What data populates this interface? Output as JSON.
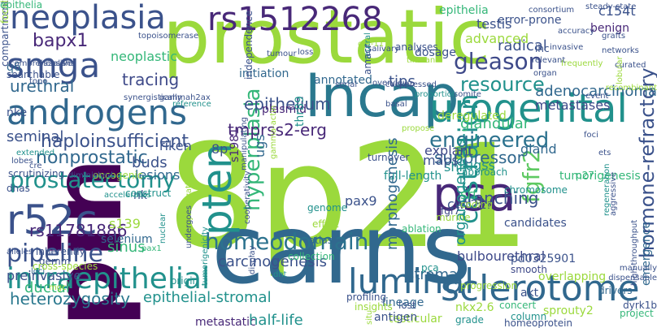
{
  "palette": {
    "dark_purple": "#440154",
    "indigo": "#3b528b",
    "blue": "#31688e",
    "teal": "#21918c",
    "green": "#35b779",
    "lime": "#9bd93c",
    "yellow": "#dde318"
  },
  "words": [
    {
      "text": "pin",
      "color": "#440154",
      "rotated": true
    },
    {
      "text": "8p21",
      "color": "#9bd93c",
      "rotated": false
    },
    {
      "text": "prostatic",
      "color": "#9bd93c",
      "rotated": false
    },
    {
      "text": "carns",
      "color": "#31688e",
      "rotated": false
    },
    {
      "text": "lncap",
      "color": "#2a788e",
      "rotated": false
    },
    {
      "text": "neoplasia",
      "color": "#3b528b",
      "rotated": false
    },
    {
      "text": "rs1512268",
      "color": "#482878",
      "rotated": false
    },
    {
      "text": "androgens",
      "color": "#31688e",
      "rotated": false
    },
    {
      "text": "urogenital",
      "color": "#21918c",
      "rotated": false
    },
    {
      "text": "intraepithelial",
      "color": "#21918c",
      "rotated": false
    },
    {
      "text": "sclerotome",
      "color": "#31688e",
      "rotated": false
    },
    {
      "text": "luminal",
      "color": "#31688e",
      "rotated": false
    },
    {
      "text": "psa",
      "color": "#482878",
      "rotated": false
    },
    {
      "text": "pten",
      "color": "#21918c",
      "rotated": true
    },
    {
      "text": "smga",
      "color": "#3b528b",
      "rotated": false
    },
    {
      "text": "r52c",
      "color": "#3b528b",
      "rotated": false
    },
    {
      "text": "prostatectomy",
      "color": "#21918c",
      "rotated": false
    },
    {
      "text": "homeodomain",
      "color": "#2c728e",
      "rotated": false
    },
    {
      "text": "pipeline",
      "color": "#3b528b",
      "rotated": false
    },
    {
      "text": "castration",
      "color": "#21918c",
      "rotated": true
    },
    {
      "text": "hyperplasia",
      "color": "#35b779",
      "rotated": true
    },
    {
      "text": "gleason",
      "color": "#3e4989",
      "rotated": false
    },
    {
      "text": "engineered",
      "color": "#2c728e",
      "rotated": false
    },
    {
      "text": "resource",
      "color": "#21918c",
      "rotated": false
    },
    {
      "text": "fgfr2",
      "color": "#5ec962",
      "rotated": true
    },
    {
      "text": "hormone-refractory",
      "color": "#3b528b",
      "rotated": true
    },
    {
      "text": "bapx1",
      "color": "#482878",
      "rotated": false
    },
    {
      "text": "urethral",
      "color": "#31688e",
      "rotated": false
    },
    {
      "text": "tracing",
      "color": "#3e4989",
      "rotated": false
    },
    {
      "text": "epithelium",
      "color": "#3b528b",
      "rotated": false
    },
    {
      "text": "haploinsufficient",
      "color": "#3b528b",
      "rotated": false
    },
    {
      "text": "suppressor",
      "color": "#31688e",
      "rotated": false
    },
    {
      "text": "nonprostatic",
      "color": "#31688e",
      "rotated": false
    },
    {
      "text": "rs11781886",
      "color": "#482878",
      "rotated": false
    },
    {
      "text": "carcinogenesis",
      "color": "#3b528b",
      "rotated": false
    },
    {
      "text": "bulbourethral",
      "color": "#3e4989",
      "rotated": false
    },
    {
      "text": "heterozygosity",
      "color": "#2a788e",
      "rotated": false
    },
    {
      "text": "epithelial-stromal",
      "color": "#21918c",
      "rotated": false
    },
    {
      "text": "preinvasive",
      "color": "#3b528b",
      "rotated": false
    },
    {
      "text": "ductal",
      "color": "#35b779",
      "rotated": false
    },
    {
      "text": "seminal",
      "color": "#3b528b",
      "rotated": false
    },
    {
      "text": "branching",
      "color": "#3b528b",
      "rotated": false
    },
    {
      "text": "tmprss2-erg",
      "color": "#482878",
      "rotated": false
    },
    {
      "text": "organogenesis",
      "color": "#21918c",
      "rotated": true
    },
    {
      "text": "morphogenesis",
      "color": "#31688e",
      "rotated": true
    },
    {
      "text": "epithelia",
      "color": "#35b779",
      "rotated": false
    },
    {
      "text": "radical",
      "color": "#3b528b",
      "rotated": false
    },
    {
      "text": "c154t",
      "color": "#3b528b",
      "rotated": false
    },
    {
      "text": "benign",
      "color": "#482878",
      "rotated": false
    },
    {
      "text": "adenocarcinoma",
      "color": "#31688e",
      "rotated": false
    },
    {
      "text": "testis",
      "color": "#3b528b",
      "rotated": false
    },
    {
      "text": "advanced",
      "color": "#9bd93c",
      "rotated": false
    },
    {
      "text": "metastases",
      "color": "#3e4989",
      "rotated": false
    },
    {
      "text": "glandular",
      "color": "#35b779",
      "rotated": false
    },
    {
      "text": "gland",
      "color": "#31688e",
      "rotated": false
    },
    {
      "text": "deregulated",
      "color": "#9bd93c",
      "rotated": false
    },
    {
      "text": "plasmid",
      "color": "#482878",
      "rotated": false
    },
    {
      "text": "annotated",
      "color": "#31688e",
      "rotated": false
    },
    {
      "text": "tips",
      "color": "#3b528b",
      "rotated": false
    },
    {
      "text": "initiation",
      "color": "#31688e",
      "rotated": false
    },
    {
      "text": "neoplastic",
      "color": "#35b779",
      "rotated": false
    },
    {
      "text": "buds",
      "color": "#3b528b",
      "rotated": false
    },
    {
      "text": "lesions",
      "color": "#31688e",
      "rotated": false
    },
    {
      "text": "riken",
      "color": "#3b528b",
      "rotated": false
    },
    {
      "text": "8p",
      "color": "#3b528b",
      "rotated": false
    },
    {
      "text": "nk",
      "color": "#3b528b",
      "rotated": false
    },
    {
      "text": "ugs",
      "color": "#31688e",
      "rotated": true
    },
    {
      "text": "s1981",
      "color": "#482878",
      "rotated": true
    },
    {
      "text": "thr89",
      "color": "#21918c",
      "rotated": true
    },
    {
      "text": "ugss",
      "color": "#21918c",
      "rotated": false
    },
    {
      "text": "shh",
      "color": "#21918c",
      "rotated": false
    },
    {
      "text": "srf",
      "color": "#35b779",
      "rotated": false
    },
    {
      "text": "explant",
      "color": "#3e4989",
      "rotated": false
    },
    {
      "text": "maps",
      "color": "#3b528b",
      "rotated": false
    },
    {
      "text": "full-length",
      "color": "#21918c",
      "rotated": false
    },
    {
      "text": "p27",
      "color": "#35b779",
      "rotated": false
    },
    {
      "text": "pax9",
      "color": "#3b528b",
      "rotated": false
    },
    {
      "text": "cwr22r",
      "color": "#3b528b",
      "rotated": false
    },
    {
      "text": "tumorigenesis",
      "color": "#35b779",
      "rotated": false
    },
    {
      "text": "candidates",
      "color": "#3b528b",
      "rotated": false
    },
    {
      "text": "stroma",
      "color": "#31688e",
      "rotated": false
    },
    {
      "text": "sinus",
      "color": "#35b779",
      "rotated": false
    },
    {
      "text": "s139",
      "color": "#9bd93c",
      "rotated": false
    },
    {
      "text": "selenium",
      "color": "#31688e",
      "rotated": false
    },
    {
      "text": "q6",
      "color": "#31688e",
      "rotated": false
    },
    {
      "text": "nke",
      "color": "#3b528b",
      "rotated": false
    },
    {
      "text": "metastatic",
      "color": "#482878",
      "rotated": false
    },
    {
      "text": "half-life",
      "color": "#21918c",
      "rotated": false
    },
    {
      "text": "testicular",
      "color": "#9bd93c",
      "rotated": false
    },
    {
      "text": "lineage",
      "color": "#31688e",
      "rotated": false
    },
    {
      "text": "antigen",
      "color": "#3b528b",
      "rotated": false
    },
    {
      "text": "pd0325901",
      "color": "#3b528b",
      "rotated": false
    },
    {
      "text": "nkx2.6",
      "color": "#9bd93c",
      "rotated": false
    },
    {
      "text": "akt",
      "color": "#3b528b",
      "rotated": false
    },
    {
      "text": "concert",
      "color": "#35b779",
      "rotated": false
    },
    {
      "text": "column",
      "color": "#21918c",
      "rotated": false
    },
    {
      "text": "sprouty2",
      "color": "#9bd93c",
      "rotated": false
    },
    {
      "text": "grade",
      "color": "#21918c",
      "rotated": false
    },
    {
      "text": "homeoprotein",
      "color": "#3b528b",
      "rotated": false
    },
    {
      "text": "drivers",
      "color": "#31688e",
      "rotated": false
    },
    {
      "text": "dyrk1b",
      "color": "#3b528b",
      "rotated": false
    },
    {
      "text": "emergence",
      "color": "#31688e",
      "rotated": true
    },
    {
      "text": "overlapping",
      "color": "#9bd93c",
      "rotated": false
    },
    {
      "text": "pca",
      "color": "#21918c",
      "rotated": false
    },
    {
      "text": "smooth",
      "color": "#3e4989",
      "rotated": false
    },
    {
      "text": "project",
      "color": "#35b779",
      "rotated": false
    },
    {
      "text": "ablation",
      "color": "#35b779",
      "rotated": false
    },
    {
      "text": "chromosome",
      "color": "#21918c",
      "rotated": false
    },
    {
      "text": "coding",
      "color": "#9bd93c",
      "rotated": false
    },
    {
      "text": "murine",
      "color": "#9bd93c",
      "rotated": false
    },
    {
      "text": "fgf7",
      "color": "#3e4989",
      "rotated": false
    },
    {
      "text": "approach",
      "color": "#21918c",
      "rotated": false
    },
    {
      "text": "turnover",
      "color": "#3b528b",
      "rotated": false
    },
    {
      "text": "genome",
      "color": "#21918c",
      "rotated": false
    },
    {
      "text": "effort",
      "color": "#9bd93c",
      "rotated": false
    },
    {
      "text": "atlas",
      "color": "#31688e",
      "rotated": false
    },
    {
      "text": "progression",
      "color": "#9bd93c",
      "rotated": false
    },
    {
      "text": "collection",
      "color": "#35b779",
      "rotated": false
    },
    {
      "text": "profiling",
      "color": "#3b528b",
      "rotated": false
    },
    {
      "text": "lost",
      "color": "#3b528b",
      "rotated": false
    },
    {
      "text": "insights",
      "color": "#9bd93c",
      "rotated": false
    },
    {
      "text": "origin",
      "color": "#21918c",
      "rotated": false
    },
    {
      "text": "pax1",
      "color": "#35b779",
      "rotated": false
    },
    {
      "text": "gemm",
      "color": "#3b528b",
      "rotated": false
    },
    {
      "text": "inherently",
      "color": "#3b528b",
      "rotated": false
    },
    {
      "text": "loci",
      "color": "#31688e",
      "rotated": false
    },
    {
      "text": "alleles",
      "color": "#3b528b",
      "rotated": false
    },
    {
      "text": "cross-species",
      "color": "#9bd93c",
      "rotated": false
    },
    {
      "text": "searchable",
      "color": "#3b528b",
      "rotated": false
    },
    {
      "text": "scrutinizing",
      "color": "#3b528b",
      "rotated": false
    },
    {
      "text": "oncogenic",
      "color": "#9bd93c",
      "rotated": false
    },
    {
      "text": "dnas",
      "color": "#3b528b",
      "rotated": false
    },
    {
      "text": "diminished",
      "color": "#3b528b",
      "rotated": false
    },
    {
      "text": "construct",
      "color": "#21918c",
      "rotated": false
    },
    {
      "text": "accelerates",
      "color": "#21918c",
      "rotated": false
    },
    {
      "text": "cre",
      "color": "#3b528b",
      "rotated": false
    },
    {
      "text": "lobes",
      "color": "#3b528b",
      "rotated": false
    },
    {
      "text": "extended",
      "color": "#21918c",
      "rotated": false
    },
    {
      "text": "comprehensive",
      "color": "#3b528b",
      "rotated": false
    },
    {
      "text": "topo",
      "color": "#3b528b",
      "rotated": false
    },
    {
      "text": "topoisomerase",
      "color": "#3b528b",
      "rotated": false
    },
    {
      "text": "synergistically",
      "color": "#3b528b",
      "rotated": false
    },
    {
      "text": "frs2alpha",
      "color": "#3b528b",
      "rotated": false
    },
    {
      "text": "gammah2ax",
      "color": "#3b528b",
      "rotated": false
    },
    {
      "text": "reference",
      "color": "#21918c",
      "rotated": false
    },
    {
      "text": "tumour",
      "color": "#3b528b",
      "rotated": false
    },
    {
      "text": "loss",
      "color": "#3b528b",
      "rotated": false
    },
    {
      "text": "salivary",
      "color": "#3b528b",
      "rotated": false
    },
    {
      "text": "analyses",
      "color": "#3b528b",
      "rotated": false
    },
    {
      "text": "dosage",
      "color": "#3b528b",
      "rotated": false
    },
    {
      "text": "tinman",
      "color": "#9bd93c",
      "rotated": false
    },
    {
      "text": "overview",
      "color": "#3b528b",
      "rotated": false
    },
    {
      "text": "serial",
      "color": "#3b528b",
      "rotated": false
    },
    {
      "text": "coexpressed",
      "color": "#3b528b",
      "rotated": false
    },
    {
      "text": "proportion",
      "color": "#21918c",
      "rotated": false
    },
    {
      "text": "somite",
      "color": "#3b528b",
      "rotated": false
    },
    {
      "text": "basal",
      "color": "#3b528b",
      "rotated": false
    },
    {
      "text": "propose",
      "color": "#9bd93c",
      "rotated": false
    },
    {
      "text": "frequently",
      "color": "#9bd93c",
      "rotated": false
    },
    {
      "text": "ihc",
      "color": "#3b528b",
      "rotated": false
    },
    {
      "text": "relevant",
      "color": "#3b528b",
      "rotated": false
    },
    {
      "text": "organ",
      "color": "#3b528b",
      "rotated": false
    },
    {
      "text": "invasive",
      "color": "#3b528b",
      "rotated": false
    },
    {
      "text": "accuracy",
      "color": "#3b528b",
      "rotated": false
    },
    {
      "text": "consortium",
      "color": "#3b528b",
      "rotated": false
    },
    {
      "text": "steady-state",
      "color": "#3b528b",
      "rotated": false
    },
    {
      "text": "grafts",
      "color": "#3b528b",
      "rotated": false
    },
    {
      "text": "networks",
      "color": "#3b528b",
      "rotated": false
    },
    {
      "text": "curated",
      "color": "#3b528b",
      "rotated": false
    },
    {
      "text": "event",
      "color": "#3b528b",
      "rotated": false
    },
    {
      "text": "foci",
      "color": "#3b528b",
      "rotated": false
    },
    {
      "text": "ets",
      "color": "#3b528b",
      "rotated": false
    },
    {
      "text": "recombinant",
      "color": "#9bd93c",
      "rotated": false
    },
    {
      "text": "lobular",
      "color": "#9bd93c",
      "rotated": true
    },
    {
      "text": "aggressive",
      "color": "#3b528b",
      "rotated": true
    },
    {
      "text": "high-throughput",
      "color": "#3b528b",
      "rotated": true
    },
    {
      "text": "regeneration",
      "color": "#21918c",
      "rotated": true
    },
    {
      "text": "gamma-actin",
      "color": "#9bd93c",
      "rotated": true
    },
    {
      "text": "independence",
      "color": "#3b528b",
      "rotated": true
    },
    {
      "text": "manipulating",
      "color": "#3b528b",
      "rotated": true
    },
    {
      "text": "cooperativity",
      "color": "#3b528b",
      "rotated": true
    },
    {
      "text": "tumorigenicity",
      "color": "#21918c",
      "rotated": true
    },
    {
      "text": "hybridization",
      "color": "#9bd93c",
      "rotated": true
    },
    {
      "text": "undergoes",
      "color": "#3b528b",
      "rotated": true
    },
    {
      "text": "display",
      "color": "#3b528b",
      "rotated": true
    },
    {
      "text": "situ",
      "color": "#9bd93c",
      "rotated": true
    },
    {
      "text": "dht",
      "color": "#21918c",
      "rotated": false
    },
    {
      "text": "cpt-11",
      "color": "#9bd93c",
      "rotated": false
    },
    {
      "text": "neutral",
      "color": "#21918c",
      "rotated": true
    },
    {
      "text": "amacr",
      "color": "#3b528b",
      "rotated": true
    },
    {
      "text": "nuclear",
      "color": "#21918c",
      "rotated": true
    },
    {
      "text": "mgc",
      "color": "#9bd93c",
      "rotated": false
    },
    {
      "text": "manually",
      "color": "#3b528b",
      "rotated": false
    },
    {
      "text": "dispensable",
      "color": "#3b528b",
      "rotated": false
    },
    {
      "text": "error-prone",
      "color": "#3b528b",
      "rotated": false
    },
    {
      "text": "compartment",
      "color": "#3b528b",
      "rotated": true
    },
    {
      "text": "focal",
      "color": "#9bd93c",
      "rotated": true
    },
    {
      "text": "epithelia",
      "color": "#35b779",
      "rotated": false
    }
  ]
}
